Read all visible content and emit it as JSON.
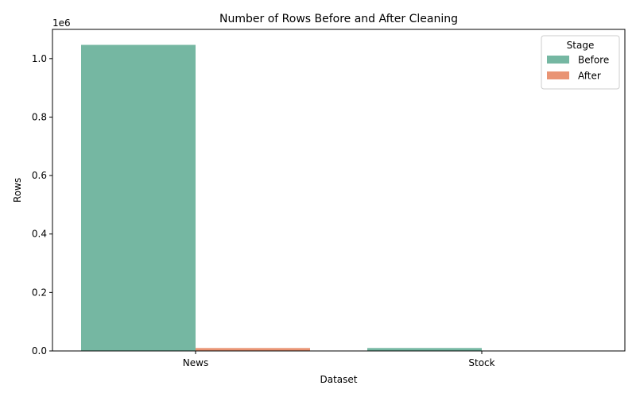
{
  "chart_data": {
    "type": "bar",
    "title": "Number of Rows Before and After Cleaning",
    "xlabel": "Dataset",
    "ylabel": "Rows",
    "y_scale_label": "1e6",
    "categories": [
      "News",
      "Stock"
    ],
    "series": [
      {
        "name": "Before",
        "values": [
          1047000,
          10000
        ],
        "color": "#75b7a2"
      },
      {
        "name": "After",
        "values": [
          10000,
          0
        ],
        "color": "#e99474"
      }
    ],
    "ylim": [
      0,
      1100000
    ],
    "yticks": [
      0,
      200000,
      400000,
      600000,
      800000,
      1000000
    ],
    "ytick_labels": [
      "0.0",
      "0.2",
      "0.4",
      "0.6",
      "0.8",
      "1.0"
    ],
    "legend": {
      "title": "Stage",
      "placement": "top-right"
    },
    "grid": false
  }
}
